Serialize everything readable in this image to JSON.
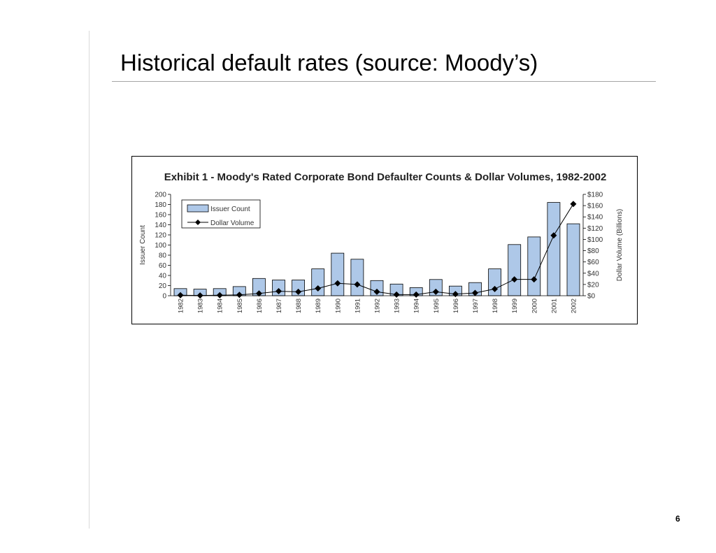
{
  "slide": {
    "title": "Historical default rates (source: Moody’s)",
    "page_number": "6"
  },
  "chart_data": {
    "type": "bar",
    "title": "Exhibit 1 - Moody's Rated Corporate Bond Defaulter Counts & Dollar Volumes, 1982-2002",
    "categories": [
      "1982",
      "1983",
      "1984",
      "1985",
      "1986",
      "1987",
      "1988",
      "1989",
      "1990",
      "1991",
      "1992",
      "1993",
      "1994",
      "1995",
      "1996",
      "1997",
      "1998",
      "1999",
      "2000",
      "2001",
      "2002"
    ],
    "ylabel": "Issuer Count",
    "ylabel_right": "Dollar Volume (Billions)",
    "ylim": [
      0,
      200
    ],
    "ylim_right": [
      0,
      180
    ],
    "yticks": [
      "0",
      "20",
      "40",
      "60",
      "80",
      "100",
      "120",
      "140",
      "160",
      "180",
      "200"
    ],
    "yticks_right": [
      "$0",
      "$20",
      "$40",
      "$60",
      "$80",
      "$100",
      "$120",
      "$140",
      "$160",
      "$180"
    ],
    "legend_position": "top-left",
    "grid": false,
    "series": [
      {
        "name": "Issuer Count",
        "type": "bar",
        "axis": "left",
        "color": "#aec8e8",
        "values": [
          14,
          13,
          14,
          18,
          34,
          31,
          31,
          53,
          84,
          72,
          30,
          23,
          16,
          32,
          19,
          26,
          53,
          101,
          116,
          184,
          142
        ]
      },
      {
        "name": "Dollar Volume",
        "type": "line",
        "axis": "right",
        "color": "#000000",
        "values": [
          1,
          0.5,
          1,
          1.5,
          4,
          8,
          7,
          13,
          22,
          20,
          7,
          2,
          2,
          7,
          3,
          5,
          12,
          29,
          29,
          107,
          163
        ]
      }
    ]
  }
}
